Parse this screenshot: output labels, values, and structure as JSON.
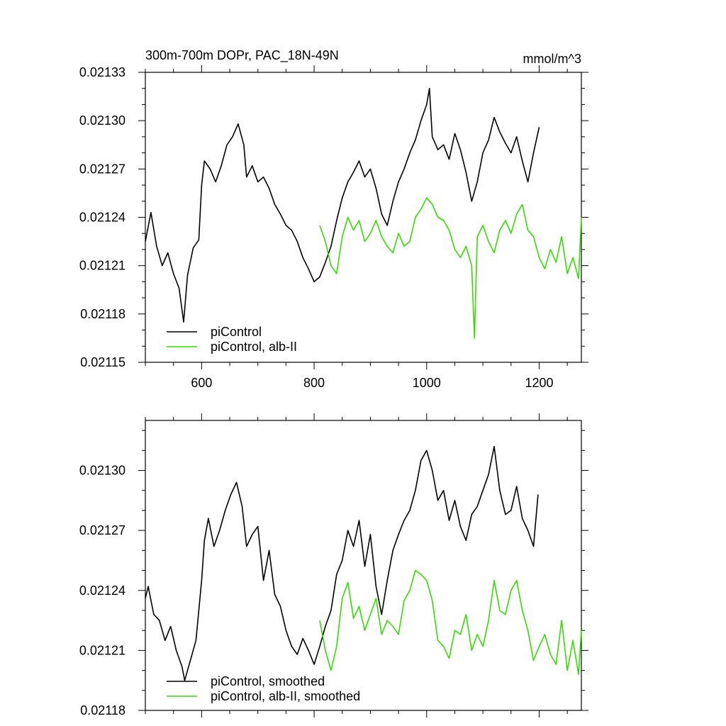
{
  "chart_data": [
    {
      "type": "line",
      "title_left": "300m-700m DOPr, PAC_18N-49N",
      "title_right": "mmol/m^3",
      "xlim": [
        500,
        1275
      ],
      "ylim": [
        0.02115,
        0.02133
      ],
      "xticks": [
        600,
        800,
        1000,
        1200
      ],
      "xtick_labels": [
        "600",
        "800",
        "1000",
        "1200"
      ],
      "yticks": [
        0.02115,
        0.02118,
        0.02121,
        0.02124,
        0.02127,
        0.0213,
        0.02133
      ],
      "ytick_labels": [
        "0.02115",
        "0.02118",
        "0.02121",
        "0.02124",
        "0.02127",
        "0.02130",
        "0.02133"
      ],
      "series": [
        {
          "name": "piControl",
          "color": "#000000",
          "x": [
            500,
            510,
            520,
            530,
            540,
            550,
            560,
            568,
            575,
            585,
            595,
            600,
            605,
            615,
            625,
            635,
            645,
            655,
            665,
            675,
            680,
            690,
            700,
            710,
            720,
            730,
            740,
            750,
            760,
            770,
            780,
            790,
            800,
            810,
            820,
            830,
            840,
            850,
            860,
            870,
            880,
            890,
            900,
            910,
            920,
            930,
            940,
            950,
            960,
            970,
            980,
            990,
            1000,
            1005,
            1010,
            1020,
            1030,
            1040,
            1050,
            1060,
            1070,
            1080,
            1090,
            1100,
            1110,
            1120,
            1130,
            1140,
            1150,
            1160,
            1170,
            1180,
            1190,
            1200
          ],
          "y": [
            0.021225,
            0.021243,
            0.021222,
            0.02121,
            0.021218,
            0.021205,
            0.021196,
            0.021175,
            0.021204,
            0.021221,
            0.021226,
            0.02126,
            0.021275,
            0.02127,
            0.021262,
            0.021272,
            0.021285,
            0.02129,
            0.021298,
            0.021285,
            0.021265,
            0.021272,
            0.021262,
            0.021265,
            0.021258,
            0.021248,
            0.021242,
            0.021235,
            0.021232,
            0.021225,
            0.021215,
            0.021208,
            0.0212,
            0.021203,
            0.021212,
            0.021222,
            0.021238,
            0.021252,
            0.021262,
            0.021268,
            0.021275,
            0.021265,
            0.02127,
            0.021258,
            0.021242,
            0.021235,
            0.02125,
            0.021262,
            0.02127,
            0.02128,
            0.021288,
            0.0213,
            0.02131,
            0.02132,
            0.02129,
            0.021282,
            0.021285,
            0.021276,
            0.021292,
            0.021282,
            0.021268,
            0.02125,
            0.021262,
            0.02128,
            0.021288,
            0.021302,
            0.021293,
            0.021286,
            0.02128,
            0.02129,
            0.021275,
            0.021262,
            0.02128,
            0.021296
          ]
        },
        {
          "name": "piControl, alb-II",
          "color": "#33dd00",
          "x": [
            810,
            820,
            830,
            840,
            850,
            860,
            870,
            880,
            890,
            900,
            910,
            920,
            930,
            940,
            950,
            960,
            970,
            980,
            990,
            1000,
            1010,
            1020,
            1030,
            1040,
            1050,
            1060,
            1070,
            1080,
            1085,
            1090,
            1100,
            1110,
            1120,
            1130,
            1140,
            1150,
            1160,
            1170,
            1180,
            1190,
            1200,
            1210,
            1220,
            1230,
            1240,
            1250,
            1260,
            1270,
            1275
          ],
          "y": [
            0.021235,
            0.021225,
            0.02121,
            0.021205,
            0.021228,
            0.02124,
            0.021232,
            0.021238,
            0.021225,
            0.02123,
            0.021238,
            0.021228,
            0.021222,
            0.021218,
            0.02123,
            0.021222,
            0.021225,
            0.02124,
            0.021245,
            0.021252,
            0.021248,
            0.02124,
            0.021238,
            0.021232,
            0.02122,
            0.021215,
            0.021222,
            0.02121,
            0.021165,
            0.021228,
            0.021235,
            0.021225,
            0.021218,
            0.021232,
            0.021238,
            0.02123,
            0.021242,
            0.021248,
            0.021232,
            0.021228,
            0.021215,
            0.021208,
            0.02122,
            0.021212,
            0.021228,
            0.021205,
            0.021215,
            0.021202,
            0.02124
          ]
        }
      ]
    },
    {
      "type": "line",
      "title_left": "",
      "title_right": "",
      "xlim": [
        500,
        1275
      ],
      "ylim": [
        0.02118,
        0.021325
      ],
      "xticks": [
        600,
        800,
        1000,
        1200
      ],
      "xtick_labels": [],
      "yticks": [
        0.02118,
        0.02121,
        0.02124,
        0.02127,
        0.0213
      ],
      "ytick_labels": [
        "0.02118",
        "0.02121",
        "0.02124",
        "0.02127",
        "0.02130"
      ],
      "series": [
        {
          "name": "piControl, smoothed",
          "color": "#000000",
          "x": [
            500,
            505,
            515,
            525,
            535,
            545,
            555,
            565,
            570,
            580,
            590,
            600,
            605,
            612,
            622,
            632,
            642,
            652,
            662,
            672,
            680,
            690,
            700,
            710,
            720,
            730,
            740,
            750,
            760,
            770,
            780,
            790,
            800,
            810,
            820,
            830,
            840,
            850,
            860,
            870,
            880,
            890,
            900,
            910,
            920,
            930,
            940,
            950,
            960,
            970,
            980,
            990,
            1000,
            1010,
            1020,
            1030,
            1040,
            1050,
            1060,
            1070,
            1080,
            1090,
            1100,
            1110,
            1120,
            1130,
            1140,
            1150,
            1160,
            1170,
            1180,
            1190,
            1198
          ],
          "y": [
            0.021236,
            0.021242,
            0.021228,
            0.021225,
            0.021215,
            0.021222,
            0.02121,
            0.021202,
            0.021195,
            0.021205,
            0.021215,
            0.021245,
            0.021265,
            0.021276,
            0.021262,
            0.02127,
            0.02128,
            0.021288,
            0.021294,
            0.021282,
            0.021262,
            0.021268,
            0.021272,
            0.021245,
            0.02126,
            0.021238,
            0.021232,
            0.02122,
            0.021212,
            0.021208,
            0.021216,
            0.02121,
            0.021203,
            0.021212,
            0.021222,
            0.02123,
            0.021248,
            0.021255,
            0.02127,
            0.021262,
            0.021275,
            0.021252,
            0.021268,
            0.021242,
            0.021228,
            0.021245,
            0.02126,
            0.021268,
            0.021275,
            0.02128,
            0.02129,
            0.021305,
            0.02131,
            0.0213,
            0.021285,
            0.02129,
            0.021275,
            0.021285,
            0.021272,
            0.021265,
            0.021278,
            0.021282,
            0.02129,
            0.021298,
            0.021312,
            0.02129,
            0.021278,
            0.02128,
            0.021292,
            0.021276,
            0.02127,
            0.021262,
            0.021288
          ]
        },
        {
          "name": "piControl, alb-II, smoothed",
          "color": "#33dd00",
          "x": [
            810,
            820,
            830,
            840,
            850,
            860,
            870,
            880,
            890,
            900,
            910,
            920,
            930,
            940,
            950,
            960,
            970,
            980,
            990,
            1000,
            1010,
            1020,
            1030,
            1040,
            1050,
            1060,
            1070,
            1080,
            1090,
            1100,
            1110,
            1120,
            1130,
            1140,
            1150,
            1160,
            1170,
            1180,
            1190,
            1200,
            1210,
            1220,
            1230,
            1240,
            1250,
            1260,
            1270,
            1275
          ],
          "y": [
            0.021225,
            0.02121,
            0.0212,
            0.021212,
            0.021236,
            0.021244,
            0.021226,
            0.021232,
            0.02122,
            0.021228,
            0.021236,
            0.021218,
            0.021225,
            0.021222,
            0.021218,
            0.021235,
            0.02124,
            0.02125,
            0.021248,
            0.021245,
            0.021235,
            0.021215,
            0.021212,
            0.021206,
            0.02122,
            0.021218,
            0.021228,
            0.02121,
            0.021218,
            0.021212,
            0.021225,
            0.021245,
            0.02123,
            0.021228,
            0.02124,
            0.021245,
            0.02123,
            0.02122,
            0.021205,
            0.021212,
            0.021218,
            0.021208,
            0.021203,
            0.021225,
            0.0212,
            0.021215,
            0.021198,
            0.02122
          ]
        }
      ]
    }
  ]
}
